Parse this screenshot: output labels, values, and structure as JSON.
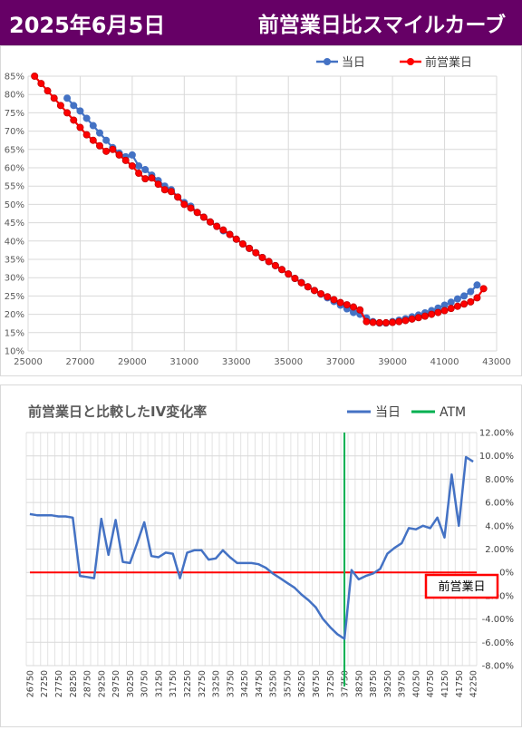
{
  "header": {
    "date": "2025年6月5日",
    "title": "前営業日比スマイルカーブ"
  },
  "colors": {
    "header_bg": "#660066",
    "today": "#4472c4",
    "prev_day": "#ff0000",
    "iv_line": "#4472c4",
    "atm": "#00b050",
    "zero_line": "#ff0000"
  },
  "chart_data": [
    {
      "type": "scatter",
      "title": "",
      "xlabel": "",
      "ylabel": "",
      "xlim": [
        25000,
        43000
      ],
      "ylim": [
        0.1,
        0.85
      ],
      "x_ticks": [
        "25000",
        "27000",
        "29000",
        "31000",
        "33000",
        "35000",
        "37000",
        "39000",
        "41000",
        "43000"
      ],
      "y_ticks": [
        "10%",
        "15%",
        "20%",
        "25%",
        "30%",
        "35%",
        "40%",
        "45%",
        "50%",
        "55%",
        "60%",
        "65%",
        "70%",
        "75%",
        "80%",
        "85%"
      ],
      "legend_position": "top-right",
      "grid": true,
      "series": [
        {
          "name": "当日",
          "x": [
            26500,
            26750,
            27000,
            27250,
            27500,
            27750,
            28000,
            28250,
            28500,
            28750,
            29000,
            29250,
            29500,
            29750,
            30000,
            30250,
            30500,
            30750,
            31000,
            31250,
            31500,
            31750,
            32000,
            32250,
            32500,
            32750,
            33000,
            33250,
            33500,
            33750,
            34000,
            34250,
            34500,
            34750,
            35000,
            35250,
            35500,
            35750,
            36000,
            36250,
            36500,
            36750,
            37000,
            37250,
            37500,
            37750,
            38000,
            38250,
            38500,
            38750,
            39000,
            39250,
            39500,
            39750,
            40000,
            40250,
            40500,
            40750,
            41000,
            41250,
            41500,
            41750,
            42000,
            42250
          ],
          "y": [
            0.79,
            0.77,
            0.755,
            0.735,
            0.715,
            0.695,
            0.675,
            0.655,
            0.64,
            0.63,
            0.635,
            0.605,
            0.595,
            0.58,
            0.565,
            0.55,
            0.54,
            0.52,
            0.505,
            0.495,
            0.478,
            0.465,
            0.452,
            0.44,
            0.428,
            0.418,
            0.405,
            0.392,
            0.38,
            0.368,
            0.355,
            0.344,
            0.333,
            0.322,
            0.31,
            0.298,
            0.287,
            0.275,
            0.265,
            0.255,
            0.245,
            0.235,
            0.225,
            0.215,
            0.205,
            0.2,
            0.19,
            0.18,
            0.176,
            0.176,
            0.18,
            0.184,
            0.188,
            0.193,
            0.198,
            0.204,
            0.21,
            0.217,
            0.225,
            0.233,
            0.242,
            0.25,
            0.262,
            0.28
          ]
        },
        {
          "name": "前営業日",
          "x": [
            25250,
            25500,
            25750,
            26000,
            26250,
            26500,
            26750,
            27000,
            27250,
            27500,
            27750,
            28000,
            28250,
            28500,
            28750,
            29000,
            29250,
            29500,
            29750,
            30000,
            30250,
            30500,
            30750,
            31000,
            31250,
            31500,
            31750,
            32000,
            32250,
            32500,
            32750,
            33000,
            33250,
            33500,
            33750,
            34000,
            34250,
            34500,
            34750,
            35000,
            35250,
            35500,
            35750,
            36000,
            36250,
            36500,
            36750,
            37000,
            37250,
            37500,
            37750,
            38000,
            38250,
            38500,
            38750,
            39000,
            39250,
            39500,
            39750,
            40000,
            40250,
            40500,
            40750,
            41000,
            41250,
            41500,
            41750,
            42000,
            42250,
            42500
          ],
          "y": [
            0.85,
            0.83,
            0.81,
            0.79,
            0.77,
            0.75,
            0.73,
            0.71,
            0.69,
            0.675,
            0.66,
            0.645,
            0.65,
            0.635,
            0.62,
            0.605,
            0.585,
            0.57,
            0.572,
            0.555,
            0.54,
            0.535,
            0.52,
            0.5,
            0.49,
            0.478,
            0.465,
            0.452,
            0.44,
            0.43,
            0.418,
            0.405,
            0.392,
            0.38,
            0.368,
            0.355,
            0.344,
            0.333,
            0.322,
            0.31,
            0.298,
            0.286,
            0.275,
            0.265,
            0.256,
            0.248,
            0.24,
            0.232,
            0.226,
            0.22,
            0.212,
            0.18,
            0.178,
            0.177,
            0.177,
            0.178,
            0.18,
            0.183,
            0.187,
            0.191,
            0.195,
            0.2,
            0.205,
            0.21,
            0.216,
            0.222,
            0.228,
            0.234,
            0.245,
            0.27
          ]
        }
      ]
    },
    {
      "type": "line",
      "title": "前営業日と比較したIV変化率",
      "xlabel": "",
      "ylabel": "",
      "ylim": [
        -0.08,
        0.12
      ],
      "y_axis_position": "right",
      "legend_position": "top-right",
      "grid": true,
      "y_ticks": [
        "12.00%",
        "10.00%",
        "8.00%",
        "6.00%",
        "4.00%",
        "2.00%",
        "0%",
        "-2.00%",
        "-4.00%",
        "-6.00%",
        "-8.00%"
      ],
      "categories": [
        "26750",
        "27000",
        "27250",
        "27500",
        "27750",
        "28000",
        "28250",
        "28500",
        "28750",
        "29000",
        "29250",
        "29500",
        "29750",
        "30000",
        "30250",
        "30500",
        "30750",
        "31000",
        "31250",
        "31500",
        "31750",
        "32000",
        "32250",
        "32500",
        "32750",
        "33000",
        "33250",
        "33500",
        "33750",
        "34000",
        "34250",
        "34500",
        "34750",
        "35000",
        "35250",
        "35500",
        "35750",
        "36000",
        "36250",
        "36500",
        "36750",
        "37000",
        "37250",
        "37500",
        "37750",
        "38000",
        "38250",
        "38500",
        "38750",
        "39000",
        "39250",
        "39500",
        "39750",
        "40000",
        "40250",
        "40500",
        "40750",
        "41000",
        "41250",
        "41500",
        "41750",
        "42000",
        "42250"
      ],
      "tick_labels": [
        "26750",
        "27250",
        "27750",
        "28250",
        "28750",
        "29250",
        "29750",
        "30250",
        "30750",
        "31250",
        "31750",
        "32250",
        "32750",
        "33250",
        "33750",
        "34250",
        "34750",
        "35250",
        "35750",
        "36250",
        "36750",
        "37250",
        "37750",
        "38250",
        "38750",
        "39250",
        "39750",
        "40250",
        "40750",
        "41250",
        "41750",
        "42250"
      ],
      "series": [
        {
          "name": "当日",
          "values": [
            0.05,
            0.049,
            0.049,
            0.049,
            0.048,
            0.048,
            0.047,
            -0.003,
            -0.004,
            -0.005,
            0.046,
            0.015,
            0.045,
            0.009,
            0.008,
            0.025,
            0.043,
            0.014,
            0.013,
            0.017,
            0.016,
            -0.005,
            0.017,
            0.019,
            0.019,
            0.011,
            0.012,
            0.019,
            0.013,
            0.008,
            0.008,
            0.008,
            0.007,
            0.004,
            -0.001,
            -0.005,
            -0.009,
            -0.013,
            -0.019,
            -0.024,
            -0.03,
            -0.04,
            -0.047,
            -0.053,
            -0.057,
            0.002,
            -0.006,
            -0.003,
            -0.001,
            0.003,
            0.016,
            0.021,
            0.025,
            0.038,
            0.037,
            0.04,
            0.038,
            0.047,
            0.03,
            0.084,
            0.04,
            0.099,
            0.095
          ]
        },
        {
          "name": "ATM",
          "x_category": "37750"
        }
      ],
      "reference_label": "前営業日"
    }
  ]
}
